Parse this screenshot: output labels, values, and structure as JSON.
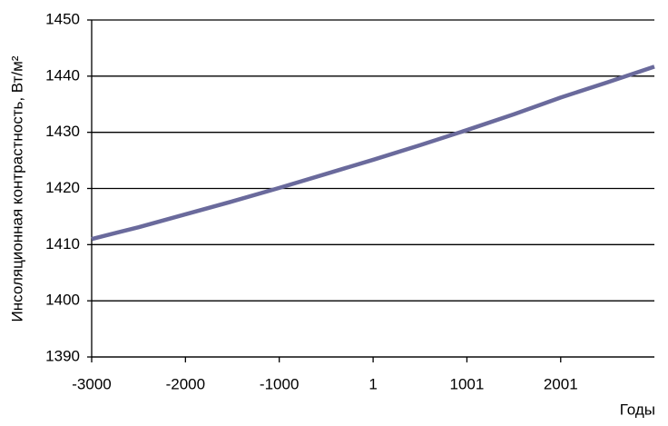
{
  "chart_data": {
    "type": "line",
    "y_label": "Инсоляционная контрастность, Вт/м²",
    "x_label": "Годы",
    "x": [
      -3000,
      -2500,
      -2000,
      -1500,
      -1000,
      -500,
      1,
      500,
      1001,
      1500,
      2001,
      2500,
      3000
    ],
    "series": [
      {
        "name": "Инсоляционная контрастность",
        "color": "#6a6a9c",
        "values": [
          1411,
          1413.1,
          1415.4,
          1417.7,
          1420.1,
          1422.6,
          1425.1,
          1427.7,
          1430.4,
          1433.2,
          1436.2,
          1438.9,
          1441.7
        ]
      }
    ],
    "xlim": [
      -3000,
      3000
    ],
    "xticks": [
      -3000,
      -2000,
      -1000,
      1,
      1001,
      2001
    ],
    "ylim": [
      1390,
      1450
    ],
    "yticks": [
      1390,
      1400,
      1410,
      1420,
      1430,
      1440,
      1450
    ],
    "grid": true
  }
}
